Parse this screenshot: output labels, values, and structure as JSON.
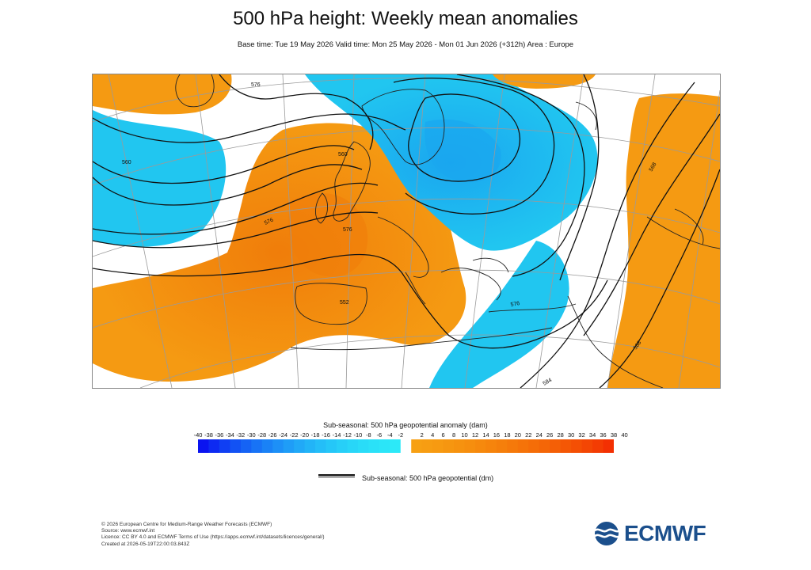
{
  "header": {
    "title": "500 hPa height: Weekly mean anomalies",
    "subtitle": "Base time: Tue 19 May 2026 Valid time: Mon 25 May 2026 - Mon 01 Jun 2026 (+312h) Area : Europe"
  },
  "map": {
    "contour_labels": [
      "576",
      "560",
      "576",
      "560",
      "552",
      "576",
      "568",
      "584",
      "576",
      "588"
    ],
    "colors": {
      "positive_anomaly": "#f59a12",
      "strong_positive_anomaly": "#f07d0a",
      "negative_anomaly": "#21c6f0",
      "strong_negative_anomaly": "#1aa6ef",
      "contour": "#111111",
      "coastline": "#222222",
      "graticule": "#9a9a9a"
    }
  },
  "colorbar": {
    "title": "Sub-seasonal: 500 hPa geopotential anomaly (dam)",
    "ticks": [
      "-40",
      "-38",
      "-36",
      "-34",
      "-32",
      "-30",
      "-28",
      "-26",
      "-24",
      "-22",
      "-20",
      "-18",
      "-16",
      "-14",
      "-12",
      "-10",
      "-8",
      "-6",
      "-4",
      "-2",
      "2",
      "4",
      "6",
      "8",
      "10",
      "12",
      "14",
      "16",
      "18",
      "20",
      "22",
      "24",
      "26",
      "28",
      "30",
      "32",
      "34",
      "36",
      "38",
      "40"
    ],
    "negative_colors": [
      "#0a14f0",
      "#0d2af2",
      "#103ff3",
      "#1252f4",
      "#1563f5",
      "#1873f6",
      "#1a82f6",
      "#1d90f7",
      "#1f9df7",
      "#21a9f7",
      "#22b4f7",
      "#24bef8",
      "#25c7f8",
      "#27cff8",
      "#28d6f8",
      "#29dcf8",
      "#2ae1f8",
      "#2be5f8",
      "#2ce9f8"
    ],
    "gap_color": "#ffffff",
    "positive_colors": [
      "#f7a013",
      "#f79d12",
      "#f79a11",
      "#f69610",
      "#f6920f",
      "#f68e0e",
      "#f6890d",
      "#f6840c",
      "#f57f0b",
      "#f5790a",
      "#f57309",
      "#f56d08",
      "#f46607",
      "#f45f06",
      "#f45705",
      "#f44f04",
      "#f34604",
      "#f33c03",
      "#f33002"
    ]
  },
  "legend": {
    "contour_label": "Sub-seasonal: 500 hPa geopotential (dm)"
  },
  "footer": {
    "lines": [
      "© 2026 European Centre for Medium-Range Weather Forecasts (ECMWF)",
      "Source: www.ecmwf.int",
      "Licence: CC BY 4.0 and ECMWF Terms of Use (https://apps.ecmwf.int/datasets/licences/general/)",
      "Created at 2026-05-19T22:00:03.843Z"
    ]
  },
  "logo": {
    "text": "ECMWF",
    "color": "#1b4f8c"
  }
}
